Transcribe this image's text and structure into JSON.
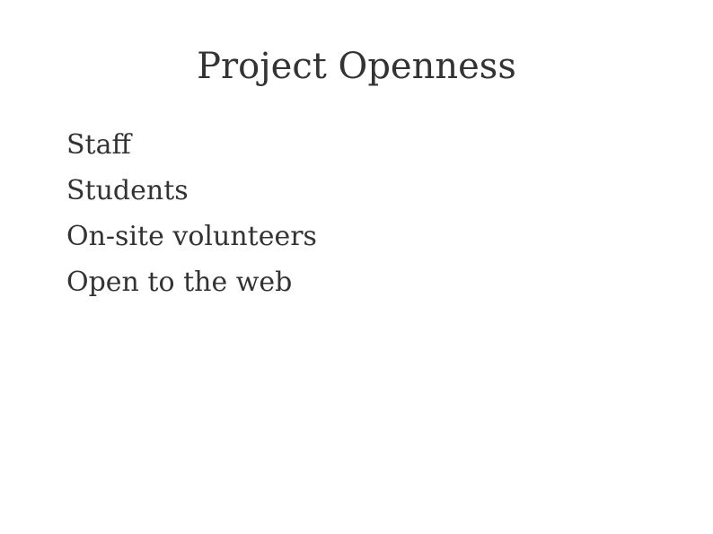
{
  "slide": {
    "title": "Project Openness",
    "items": [
      "Staff",
      "Students",
      "On-site volunteers",
      "Open to the web"
    ]
  },
  "colors": {
    "background": "#ffffff",
    "text": "#333333"
  }
}
